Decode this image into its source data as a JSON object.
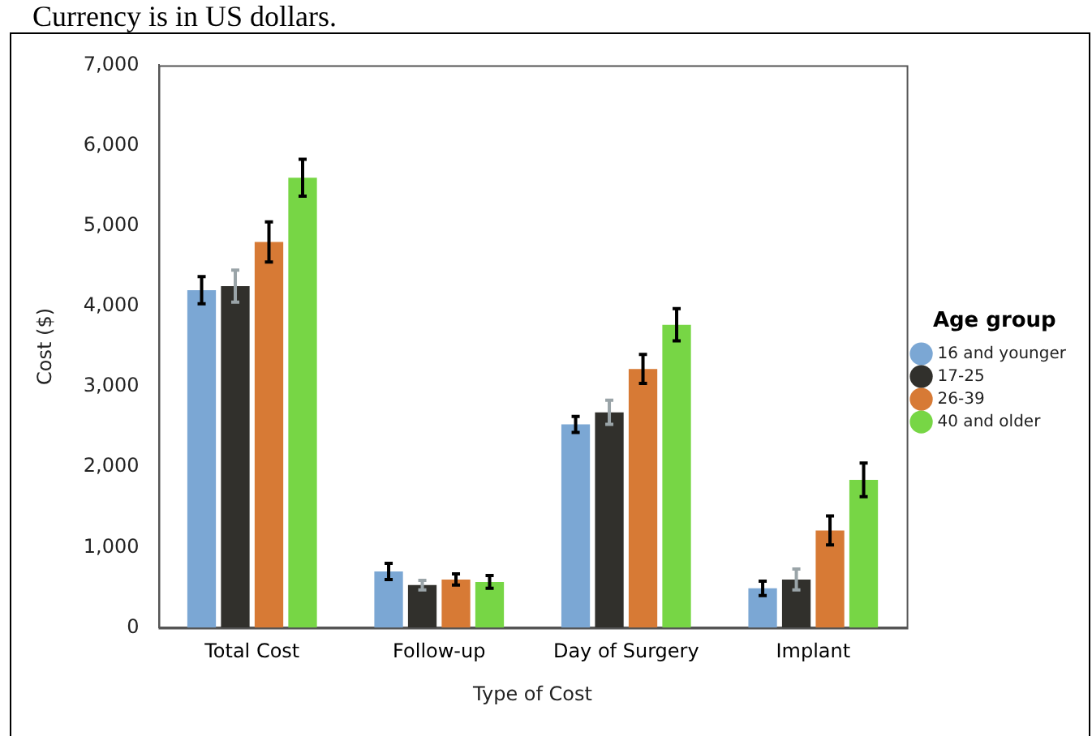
{
  "chart_data": {
    "type": "bar",
    "annotations": [
      "Currency is in US dollars."
    ],
    "xlabel": "Type of Cost",
    "ylabel": "Cost ($)",
    "legend_title": "Age group",
    "legend": "right",
    "categories": [
      "Total Cost",
      "Follow-up",
      "Day of Surgery",
      "Implant"
    ],
    "series": [
      {
        "name": "16 and younger",
        "color": "#7ba7d4",
        "values": [
          4200,
          700,
          2530,
          490
        ],
        "errors": [
          170,
          100,
          100,
          90
        ]
      },
      {
        "name": "17-25",
        "color": "#31302c",
        "values": [
          4250,
          530,
          2680,
          600
        ],
        "errors": [
          200,
          60,
          150,
          130
        ]
      },
      {
        "name": "26-39",
        "color": "#d77a35",
        "values": [
          4800,
          600,
          3220,
          1210
        ],
        "errors": [
          250,
          70,
          180,
          180
        ]
      },
      {
        "name": "40 and older",
        "color": "#77d645",
        "values": [
          5600,
          570,
          3770,
          1840
        ],
        "errors": [
          230,
          80,
          200,
          210
        ]
      }
    ],
    "ylim": [
      0,
      7000
    ],
    "yticks": [
      0,
      {
        "value": 1000,
        "label": "1,000"
      },
      {
        "value": 2000,
        "label": "2,000"
      },
      {
        "value": 3000,
        "label": "3,000"
      },
      {
        "value": 4000,
        "label": "4,000"
      },
      {
        "value": 5000,
        "label": "5,000"
      },
      {
        "value": 6000,
        "label": "6,000"
      },
      {
        "value": 7000,
        "label": "7,000"
      }
    ],
    "grid": false
  }
}
